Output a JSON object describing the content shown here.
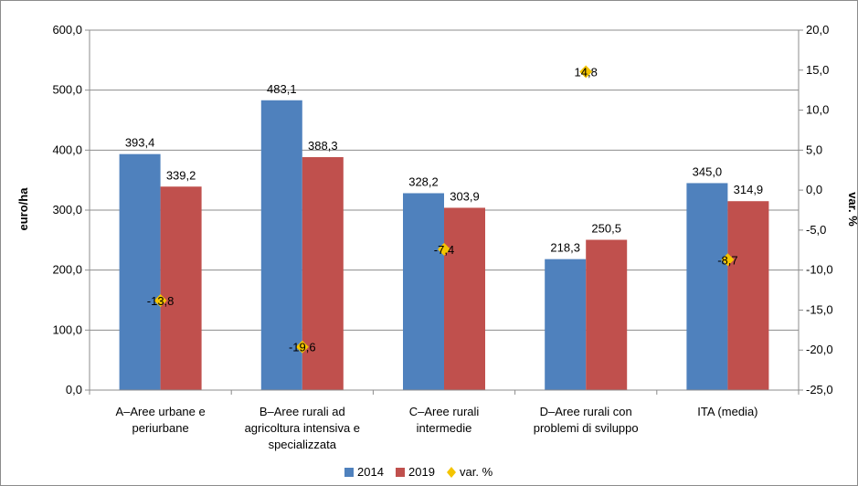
{
  "chart_data": {
    "type": "bar",
    "categories": [
      [
        "A–Aree urbane e",
        "periurbane"
      ],
      [
        "B–Aree rurali ad",
        "agricoltura intensiva e",
        "specializzata"
      ],
      [
        "C–Aree rurali",
        "intermedie"
      ],
      [
        "D–Aree rurali con",
        "problemi di sviluppo"
      ],
      [
        "ITA (media)"
      ]
    ],
    "series": [
      {
        "name": "2014",
        "color": "#4f81bd",
        "values": [
          393.4,
          483.1,
          328.2,
          218.3,
          345.0
        ],
        "labels": [
          "393,4",
          "483,1",
          "328,2",
          "218,3",
          "345,0"
        ]
      },
      {
        "name": "2019",
        "color": "#c0504d",
        "values": [
          339.2,
          388.3,
          303.9,
          250.5,
          314.9
        ],
        "labels": [
          "339,2",
          "388,3",
          "303,9",
          "250,5",
          "314,9"
        ]
      }
    ],
    "secondary_series": {
      "name": "var. %",
      "color": "#f4c400",
      "type": "scatter",
      "axis": "right",
      "values": [
        -13.8,
        -19.6,
        -7.4,
        14.8,
        -8.7
      ],
      "labels": [
        "-13,8",
        "-19,6",
        "-7,4",
        "14,8",
        "-8,7"
      ]
    },
    "ylabel": "euro/ha",
    "ylabel_right": "var. %",
    "ylim": [
      0,
      600
    ],
    "ylim_right": [
      -25,
      20
    ],
    "yticks": [
      "0,0",
      "100,0",
      "200,0",
      "300,0",
      "400,0",
      "500,0",
      "600,0"
    ],
    "yticks_right": [
      "-25,0",
      "-20,0",
      "-15,0",
      "-10,0",
      "-5,0",
      "0,0",
      "5,0",
      "10,0",
      "15,0",
      "20,0"
    ],
    "grid": true,
    "legend": "bottom"
  }
}
